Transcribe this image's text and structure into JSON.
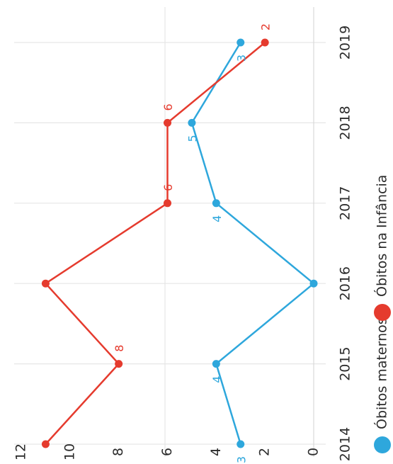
{
  "chart_data": {
    "type": "line",
    "orientation": "rotated-90-clockwise",
    "categories": [
      "2014",
      "2015",
      "2016",
      "2017",
      "2018",
      "2019"
    ],
    "ylim": [
      0,
      12
    ],
    "y_ticks": [
      "0",
      "2",
      "4",
      "6",
      "8",
      "10",
      "12"
    ],
    "grid": "vertical lines at each year",
    "series": [
      {
        "name": "Óbitos maternos",
        "color": "#2ea7dc",
        "values": [
          3,
          4,
          0,
          4,
          5,
          3
        ],
        "data_labels": [
          "3",
          "4",
          "",
          "4",
          "5",
          "3"
        ]
      },
      {
        "name": "Óbitos na Infância",
        "color": "#e53b2e",
        "values": [
          11,
          8,
          11,
          6,
          6,
          2
        ],
        "data_labels": [
          "",
          "8",
          "",
          "6",
          "6",
          "2"
        ]
      }
    ],
    "legend": {
      "placement": "bottom-right",
      "items": [
        {
          "label": "Óbitos maternos",
          "color": "#2ea7dc"
        },
        {
          "label": "Óbitos na Infância",
          "color": "#e53b2e"
        }
      ]
    }
  }
}
